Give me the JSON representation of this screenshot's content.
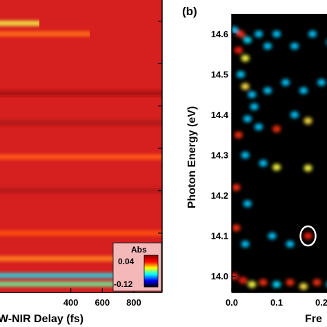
{
  "chart_data": [
    {
      "type": "heatmap",
      "panel_label": "",
      "xlabel": "W-NIR Delay (fs)",
      "ylabel": "",
      "x_ticks": [
        400,
        600,
        800
      ],
      "y_ticks": [
        14.0,
        14.1,
        14.2,
        14.3,
        14.4,
        14.5,
        14.6
      ],
      "xlim": [
        -50,
        980
      ],
      "ylim": [
        13.96,
        14.65
      ],
      "colorbar": {
        "title": "Abs",
        "max_label": "0.04",
        "min_label": "-0.12",
        "range": [
          -0.12,
          0.04
        ],
        "colors": [
          "#000000",
          "#0000ff",
          "#00ffff",
          "#ffff00",
          "#ff0000",
          "#8b0000"
        ]
      },
      "background_color": "#d62020",
      "stripes": [
        {
          "y": 14.595,
          "color": "#f0e040",
          "x_end": 200
        },
        {
          "y": 14.57,
          "color": "#ff6a1a",
          "x_end": 520
        },
        {
          "y": 14.43,
          "color": "#a81010",
          "x_end": 980
        },
        {
          "y": 14.36,
          "color": "#b01414",
          "x_end": 980
        },
        {
          "y": 14.28,
          "color": "#ff5a1a",
          "x_end": 980
        },
        {
          "y": 14.2,
          "color": "#b51515",
          "x_end": 980
        },
        {
          "y": 14.1,
          "color": "#ff5010",
          "x_end": 980
        },
        {
          "y": 14.04,
          "color": "#ff7a20",
          "x_end": 980
        },
        {
          "y": 14.0,
          "color": "#30c8d8",
          "x_end": 980
        },
        {
          "y": 13.98,
          "color": "#70e090",
          "x_end": 980
        }
      ]
    },
    {
      "type": "heatmap",
      "panel_label": "(b)",
      "xlabel": "Fre",
      "ylabel": "Photon Energy (eV)",
      "x_ticks": [
        0.0,
        0.1,
        0.2
      ],
      "x_tick_labels": [
        "0.0",
        "0.1",
        "0.2"
      ],
      "y_ticks": [
        14.0,
        14.1,
        14.2,
        14.3,
        14.4,
        14.5,
        14.6
      ],
      "y_tick_labels": [
        "14.0",
        "14.1",
        "14.2",
        "14.3",
        "14.4",
        "14.5",
        "14.6"
      ],
      "xlim": [
        0.0,
        0.31
      ],
      "ylim": [
        13.96,
        14.65
      ],
      "background_color": "#000000",
      "spots": [
        {
          "x": 0.005,
          "y": 14.61,
          "color": "#00c8ff"
        },
        {
          "x": 0.02,
          "y": 14.6,
          "color": "#ff3010"
        },
        {
          "x": 0.035,
          "y": 14.585,
          "color": "#00e0ff"
        },
        {
          "x": 0.015,
          "y": 14.56,
          "color": "#ff2010"
        },
        {
          "x": 0.03,
          "y": 14.54,
          "color": "#ffff40"
        },
        {
          "x": 0.02,
          "y": 14.5,
          "color": "#00d0ff"
        },
        {
          "x": 0.03,
          "y": 14.47,
          "color": "#ffe040"
        },
        {
          "x": 0.045,
          "y": 14.45,
          "color": "#00c8ff"
        },
        {
          "x": 0.06,
          "y": 14.6,
          "color": "#00c8ff"
        },
        {
          "x": 0.08,
          "y": 14.57,
          "color": "#00c8ff"
        },
        {
          "x": 0.1,
          "y": 14.6,
          "color": "#00c8ff"
        },
        {
          "x": 0.14,
          "y": 14.57,
          "color": "#00c8ff"
        },
        {
          "x": 0.18,
          "y": 14.6,
          "color": "#00c8ff"
        },
        {
          "x": 0.22,
          "y": 14.58,
          "color": "#00c8ff"
        },
        {
          "x": 0.05,
          "y": 14.42,
          "color": "#00c8ff"
        },
        {
          "x": 0.08,
          "y": 14.46,
          "color": "#00c8ff"
        },
        {
          "x": 0.12,
          "y": 14.48,
          "color": "#00c8ff"
        },
        {
          "x": 0.16,
          "y": 14.46,
          "color": "#00c8ff"
        },
        {
          "x": 0.2,
          "y": 14.48,
          "color": "#00c8ff"
        },
        {
          "x": 0.035,
          "y": 14.39,
          "color": "#00c8ff"
        },
        {
          "x": 0.015,
          "y": 14.35,
          "color": "#ff3010"
        },
        {
          "x": 0.1,
          "y": 14.365,
          "color": "#ff3010"
        },
        {
          "x": 0.17,
          "y": 14.385,
          "color": "#ffe040"
        },
        {
          "x": 0.06,
          "y": 14.37,
          "color": "#00c8ff"
        },
        {
          "x": 0.14,
          "y": 14.4,
          "color": "#00c8ff"
        },
        {
          "x": 0.03,
          "y": 14.3,
          "color": "#00c8ff"
        },
        {
          "x": 0.1,
          "y": 14.27,
          "color": "#ffff40"
        },
        {
          "x": 0.17,
          "y": 14.268,
          "color": "#ffff40"
        },
        {
          "x": 0.07,
          "y": 14.28,
          "color": "#00c8ff"
        },
        {
          "x": 0.01,
          "y": 14.22,
          "color": "#ff3010"
        },
        {
          "x": 0.035,
          "y": 14.18,
          "color": "#00c8ff"
        },
        {
          "x": 0.01,
          "y": 14.12,
          "color": "#ff3010"
        },
        {
          "x": 0.03,
          "y": 14.08,
          "color": "#00c8ff"
        },
        {
          "x": 0.17,
          "y": 14.1,
          "color": "#ff2010"
        },
        {
          "x": 0.13,
          "y": 14.08,
          "color": "#00c8ff"
        },
        {
          "x": 0.09,
          "y": 14.1,
          "color": "#00c8ff"
        },
        {
          "x": 0.005,
          "y": 14.0,
          "color": "#ff3010"
        },
        {
          "x": 0.025,
          "y": 13.99,
          "color": "#ff2010"
        },
        {
          "x": 0.045,
          "y": 13.98,
          "color": "#ffff40"
        },
        {
          "x": 0.07,
          "y": 13.985,
          "color": "#ff3010"
        },
        {
          "x": 0.1,
          "y": 13.98,
          "color": "#00e0ff"
        },
        {
          "x": 0.13,
          "y": 13.985,
          "color": "#ff3010"
        },
        {
          "x": 0.16,
          "y": 13.975,
          "color": "#ffe040"
        },
        {
          "x": 0.19,
          "y": 13.985,
          "color": "#ff3010"
        },
        {
          "x": 0.22,
          "y": 13.98,
          "color": "#00e0ff"
        }
      ],
      "circle_marker": {
        "x": 0.17,
        "y": 14.1
      }
    }
  ]
}
